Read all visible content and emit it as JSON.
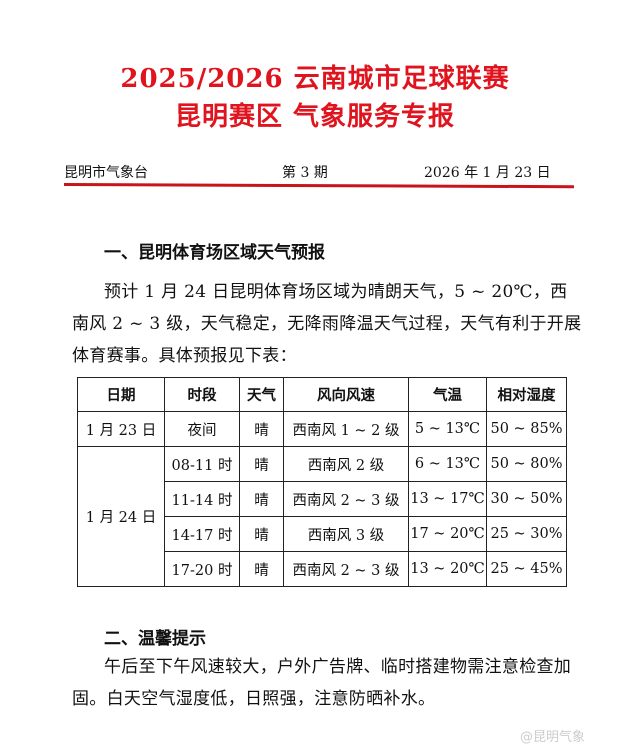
{
  "title_line1": "2025/2026 云南城市足球联赛",
  "title_line2": "昆明赛区  气象服务专报",
  "header": {
    "issuer": "昆明市气象台",
    "issue": "第 3 期",
    "date": "2026 年 1 月 23 日"
  },
  "section1": {
    "heading": "一、昆明体育场区域天气预报",
    "paragraph": "预计 1 月 24 日昆明体育场区域为晴朗天气，5 ~ 20℃，西南风 2 ~ 3 级，天气稳定，无降雨降温天气过程，天气有利于开展体育赛事。具体预报见下表："
  },
  "table": {
    "headers": [
      "日期",
      "时段",
      "天气",
      "风向风速",
      "气温",
      "相对湿度"
    ],
    "rows": [
      {
        "date": "1 月 23 日",
        "period": "夜间",
        "weather": "晴",
        "wind": "西南风 1 ~ 2 级",
        "temp": "5 ~ 13℃",
        "humidity": "50 ~ 85%"
      },
      {
        "date": "1 月 24 日",
        "period": "08-11 时",
        "weather": "晴",
        "wind": "西南风 2 级",
        "temp": "6 ~ 13℃",
        "humidity": "50 ~ 80%"
      },
      {
        "period": "11-14 时",
        "weather": "晴",
        "wind": "西南风 2 ~ 3 级",
        "temp": "13 ~ 17℃",
        "humidity": "30 ~ 50%"
      },
      {
        "period": "14-17 时",
        "weather": "晴",
        "wind": "西南风 3 级",
        "temp": "17 ~ 20℃",
        "humidity": "25 ~ 30%"
      },
      {
        "period": "17-20 时",
        "weather": "晴",
        "wind": "西南风 2 ~ 3 级",
        "temp": "13 ~ 20℃",
        "humidity": "25 ~ 45%"
      }
    ]
  },
  "section2": {
    "heading": "二、温馨提示",
    "paragraph": "午后至下午风速较大，户外广告牌、临时搭建物需注意检查加固。白天空气湿度低，日照强，注意防晒补水。"
  },
  "watermark": "@昆明气象",
  "colors": {
    "title": "#e0141e",
    "rule": "#c8141c"
  }
}
